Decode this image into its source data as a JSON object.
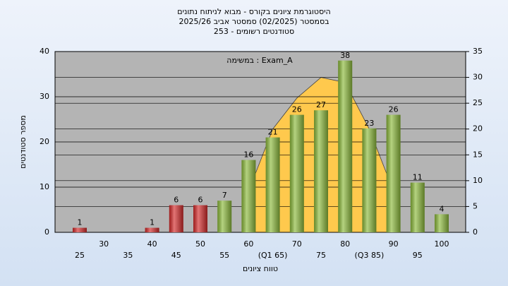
{
  "chart_data": {
    "type": "bar",
    "title": "היסטוגרמת ציונים בקורס - מבוא לניתוח נתונים",
    "subtitle": "בסמסטר  (02/2025)  סמסטר אביב 2025/26",
    "subtitle2": "סטודנטים רשומים - 253",
    "annotation": "במשימה : Exam_A",
    "x_label": "טווח ציונים",
    "y_label": "מספר סטודנטים",
    "categories": [
      "25",
      "30",
      "35",
      "40",
      "45",
      "50",
      "55",
      "60",
      "(Q1 65)",
      "70",
      "75",
      "80",
      "(Q3 85)",
      "90",
      "95",
      "100"
    ],
    "values": [
      1,
      0,
      0,
      1,
      6,
      6,
      7,
      16,
      21,
      26,
      27,
      38,
      23,
      26,
      11,
      4
    ],
    "colors": [
      "#d42a2a",
      "#d42a2a",
      "#d42a2a",
      "#d42a2a",
      "#d42a2a",
      "#d42a2a",
      "#8dbb3c",
      "#8dbb3c",
      "#8dbb3c",
      "#8dbb3c",
      "#8dbb3c",
      "#8dbb3c",
      "#8dbb3c",
      "#8dbb3c",
      "#8dbb3c",
      "#8dbb3c"
    ],
    "curve": {
      "axis": "y2",
      "color": "#ffc94d",
      "values": [
        null,
        null,
        null,
        null,
        null,
        null,
        null,
        8,
        20,
        26,
        30,
        29,
        20,
        8,
        null,
        null
      ]
    },
    "ylim": [
      0,
      40
    ],
    "yticks": [
      0,
      10,
      20,
      30,
      40
    ],
    "y2lim": [
      0,
      35
    ],
    "y2ticks": [
      0,
      5,
      10,
      15,
      20,
      25,
      30,
      35
    ],
    "grid": true
  }
}
